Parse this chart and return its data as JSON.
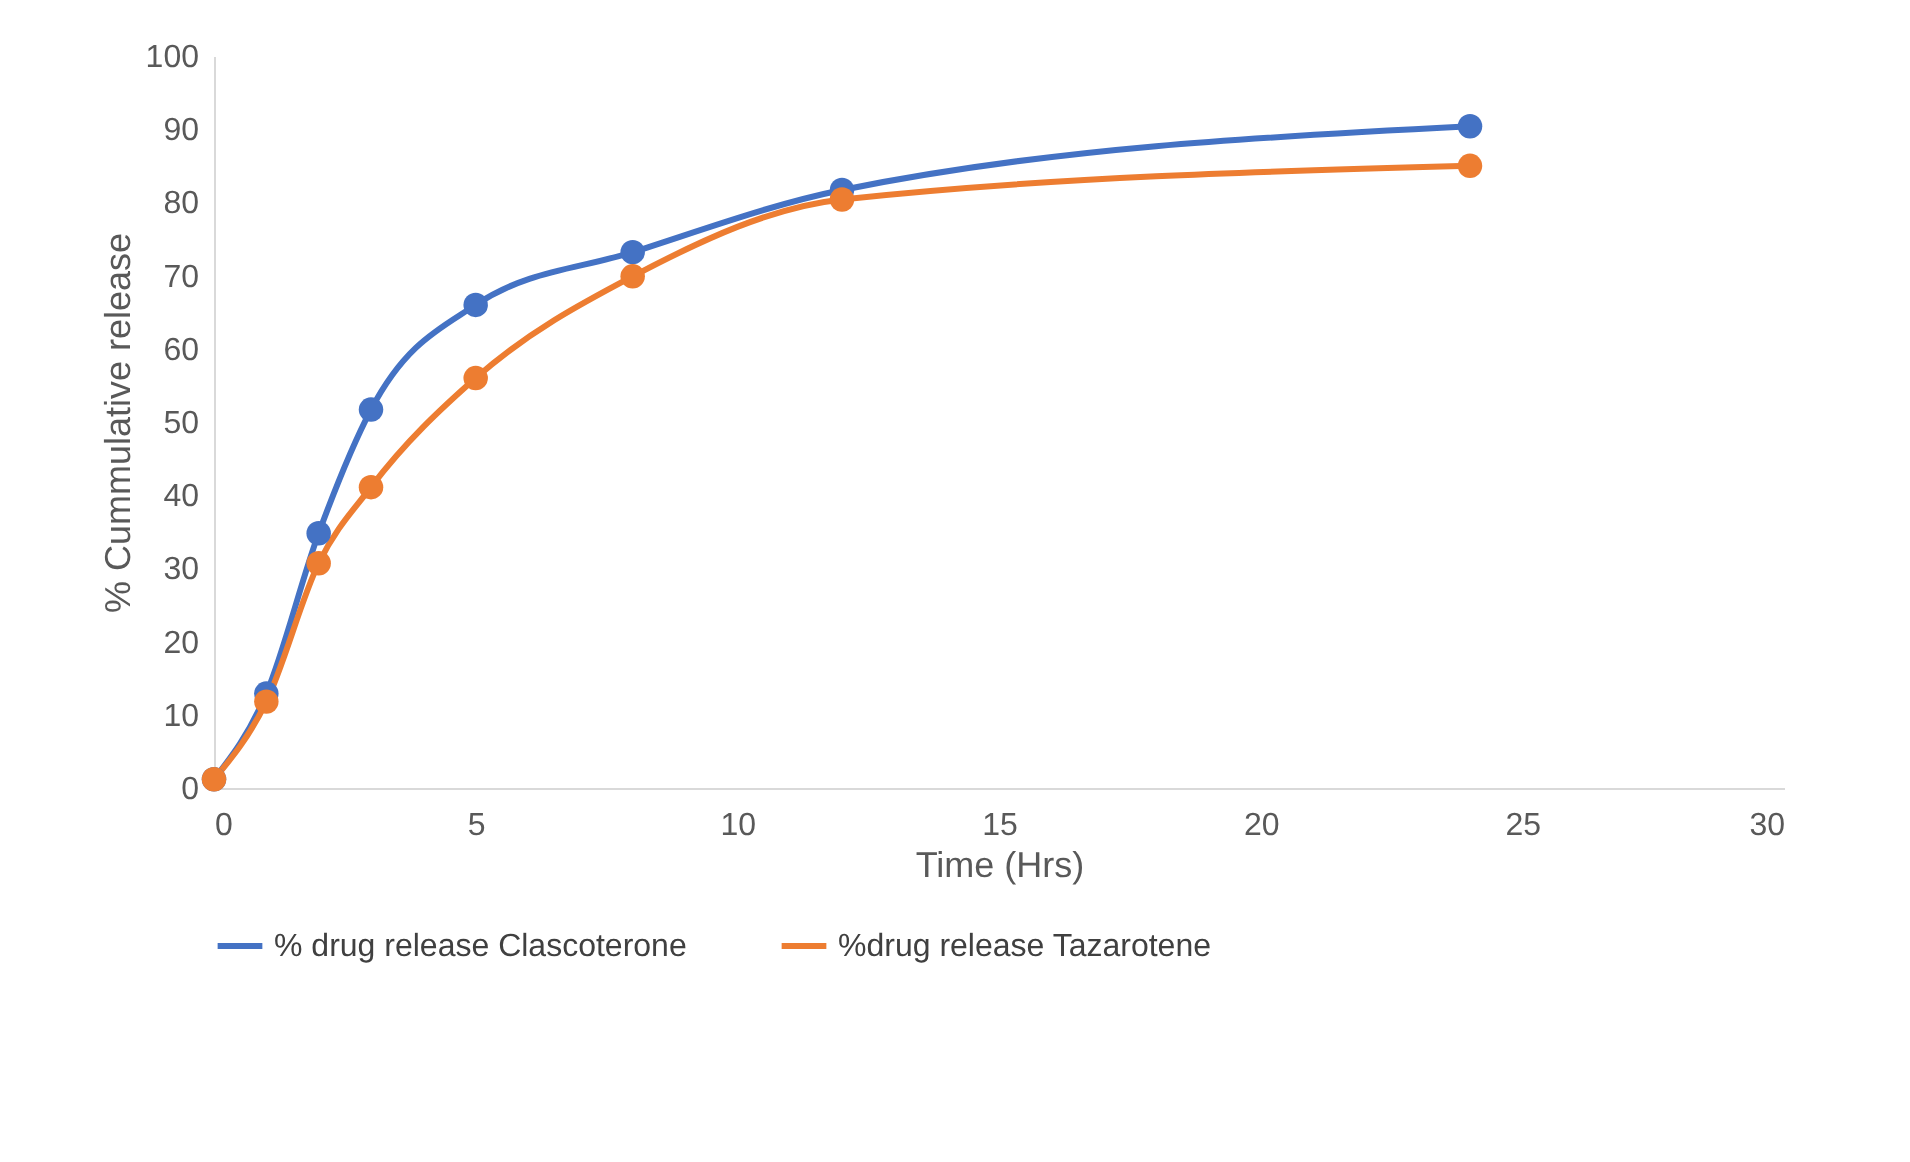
{
  "chart_data": {
    "type": "line",
    "xlabel": "Time (Hrs)",
    "ylabel": "% Cummulative release",
    "x": [
      0,
      1,
      2,
      3,
      5,
      8,
      12,
      24
    ],
    "series": [
      {
        "name": "% drug release Clascoterone",
        "color": "#4472c4",
        "values": [
          1.2,
          12.9,
          34.8,
          51.7,
          66,
          73.2,
          81.7,
          90.4
        ]
      },
      {
        "name": "%drug release Tazarotene",
        "color": "#ed7d31",
        "values": [
          1.2,
          11.8,
          30.7,
          41.1,
          56,
          69.9,
          80.4,
          85
        ]
      }
    ],
    "xlim": [
      0,
      30
    ],
    "xticks": [
      0,
      5,
      10,
      15,
      20,
      25,
      30
    ],
    "ylim": [
      0,
      100
    ],
    "yticks": [
      0,
      10,
      20,
      30,
      40,
      50,
      60,
      70,
      80,
      90,
      100
    ],
    "grid": false,
    "legend": "bottom",
    "marker": "circle",
    "line_style": "solid"
  }
}
